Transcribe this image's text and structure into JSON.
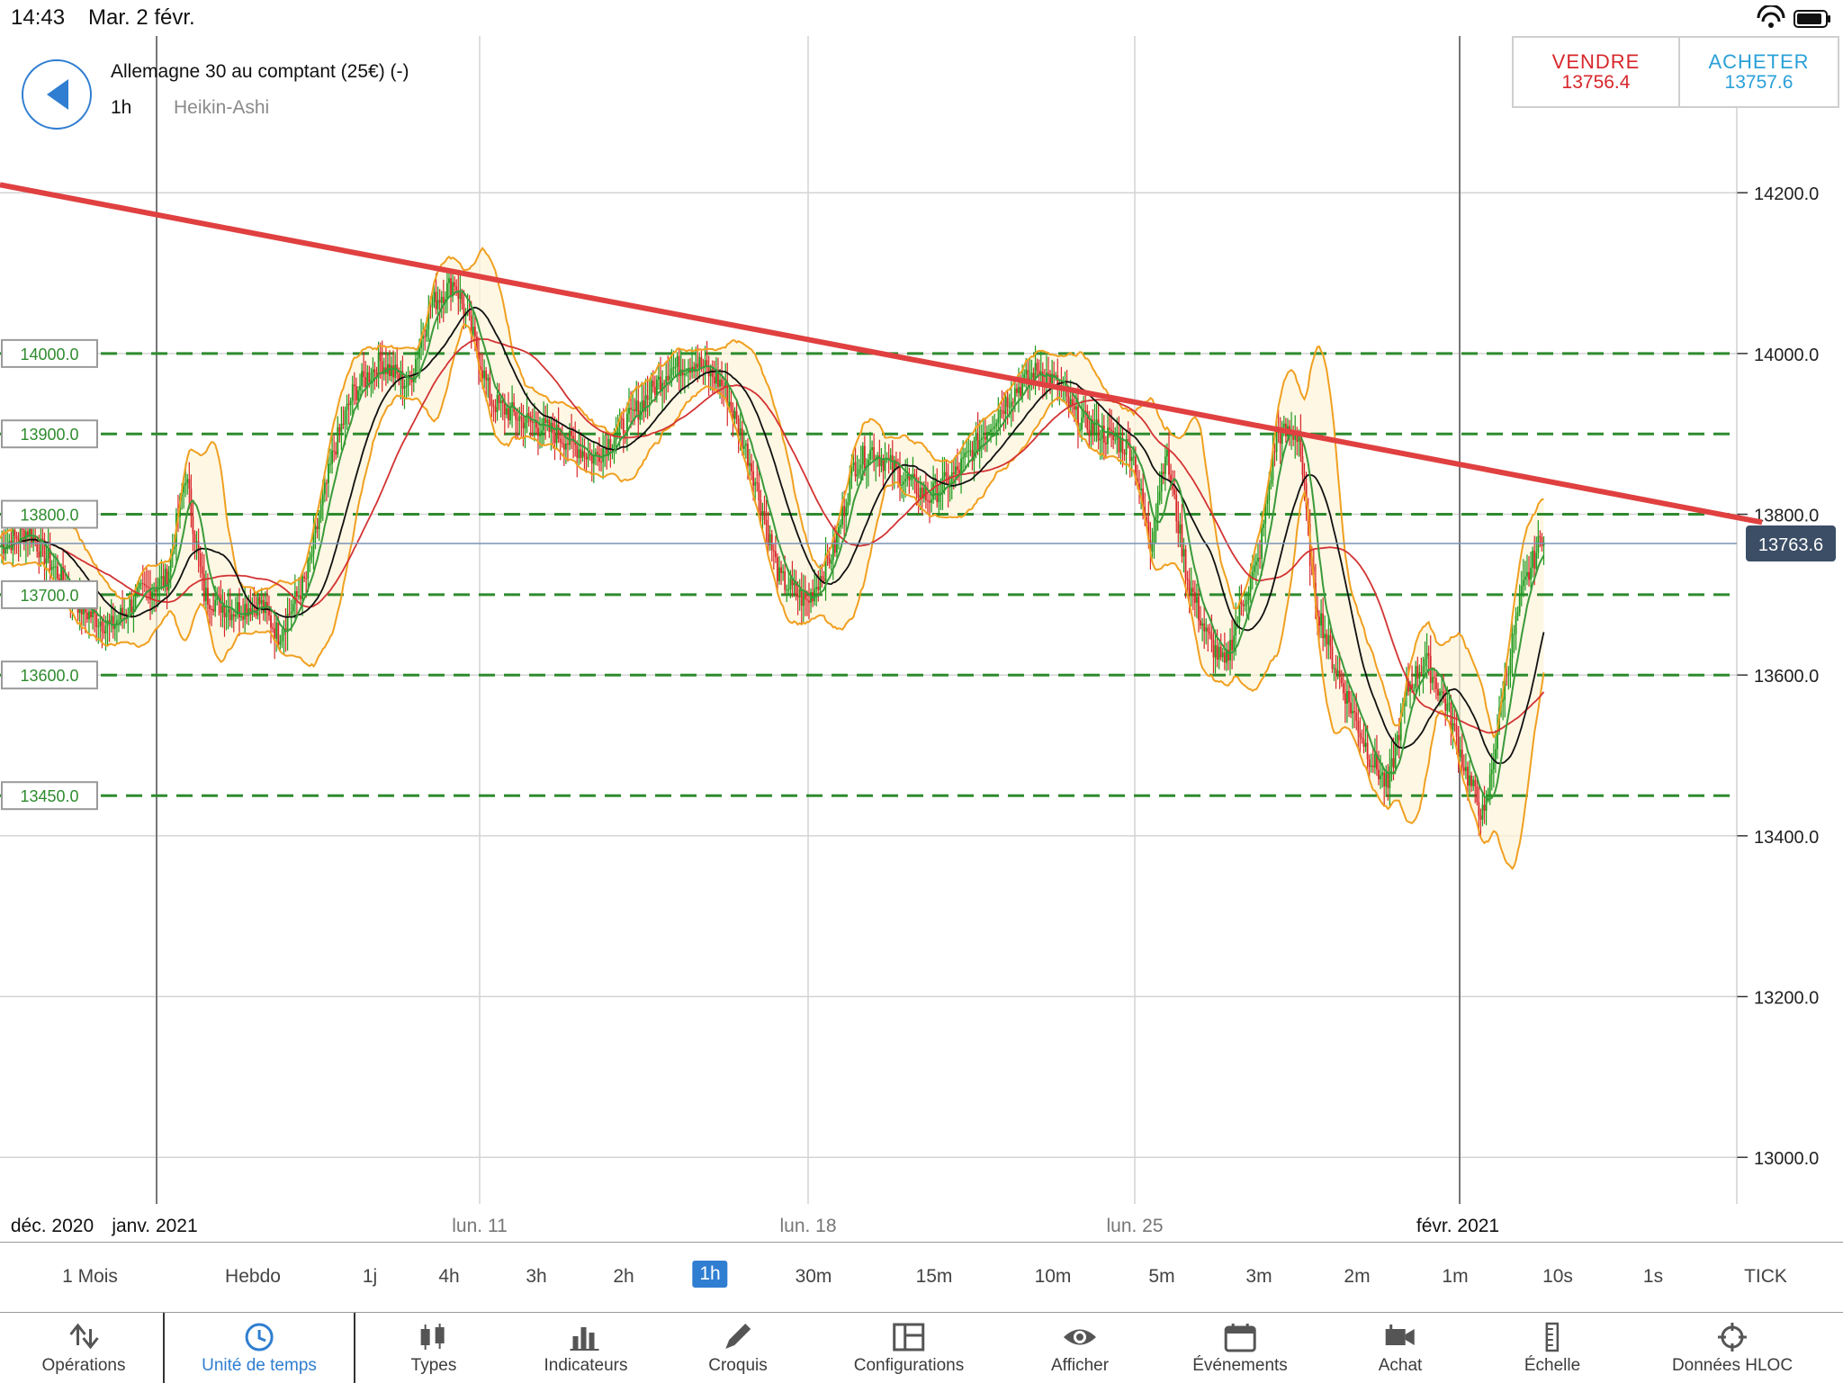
{
  "status_bar": {
    "time": "14:43",
    "date": "Mar. 2 févr."
  },
  "header": {
    "instrument": "Allemagne 30 au comptant (25€) (-)",
    "timeframe": "1h",
    "chart_type": "Heikin-Ashi"
  },
  "trade": {
    "sell_label": "VENDRE",
    "sell_price": "13756.4",
    "buy_label": "ACHETER",
    "buy_price": "13757.6"
  },
  "chart_data": {
    "type": "candlestick",
    "y_ticks": [
      "14200.0",
      "14000.0",
      "13800.0",
      "13600.0",
      "13400.0",
      "13200.0",
      "13000.0"
    ],
    "ylim": [
      12895,
      14395
    ],
    "x_labels": [
      "déc. 2020",
      "janv. 2021",
      "lun. 11",
      "lun. 18",
      "lun. 25",
      "févr. 2021"
    ],
    "level_lines": [
      "14000.0",
      "13900.0",
      "13800.0",
      "13700.0",
      "13600.0",
      "13450.0"
    ],
    "current_price": "13763.6",
    "trendline": [
      14210,
      13790
    ],
    "colors": {
      "up": "#1e9a1e",
      "down": "#d8262a",
      "level": "#2e8b2e",
      "trendline": "#e04040",
      "bollinger": "#f0a020",
      "ma_black": "#111111",
      "ma_red": "#d33333",
      "ma_green": "#3a9a3a"
    },
    "price_track": [
      [
        0,
        13760
      ],
      [
        15,
        13780
      ],
      [
        30,
        13730
      ],
      [
        45,
        13680
      ],
      [
        60,
        13660
      ],
      [
        75,
        13700
      ],
      [
        90,
        13720
      ],
      [
        100,
        13850
      ],
      [
        110,
        13700
      ],
      [
        125,
        13680
      ],
      [
        140,
        13690
      ],
      [
        150,
        13650
      ],
      [
        165,
        13720
      ],
      [
        180,
        13880
      ],
      [
        190,
        13950
      ],
      [
        205,
        13990
      ],
      [
        220,
        13960
      ],
      [
        232,
        14060
      ],
      [
        245,
        14090
      ],
      [
        255,
        14020
      ],
      [
        265,
        13940
      ],
      [
        280,
        13920
      ],
      [
        300,
        13900
      ],
      [
        320,
        13870
      ],
      [
        340,
        13920
      ],
      [
        360,
        13980
      ],
      [
        375,
        13990
      ],
      [
        390,
        13960
      ],
      [
        405,
        13860
      ],
      [
        420,
        13720
      ],
      [
        435,
        13690
      ],
      [
        450,
        13760
      ],
      [
        460,
        13860
      ],
      [
        470,
        13880
      ],
      [
        485,
        13850
      ],
      [
        500,
        13820
      ],
      [
        515,
        13850
      ],
      [
        530,
        13900
      ],
      [
        545,
        13950
      ],
      [
        560,
        13980
      ],
      [
        570,
        13960
      ],
      [
        580,
        13920
      ],
      [
        595,
        13900
      ],
      [
        610,
        13880
      ],
      [
        620,
        13760
      ],
      [
        628,
        13880
      ],
      [
        640,
        13720
      ],
      [
        650,
        13650
      ],
      [
        660,
        13610
      ],
      [
        668,
        13680
      ],
      [
        678,
        13740
      ],
      [
        688,
        13900
      ],
      [
        700,
        13900
      ],
      [
        708,
        13700
      ],
      [
        718,
        13620
      ],
      [
        728,
        13560
      ],
      [
        738,
        13500
      ],
      [
        748,
        13460
      ],
      [
        758,
        13580
      ],
      [
        768,
        13620
      ],
      [
        780,
        13560
      ],
      [
        790,
        13480
      ],
      [
        800,
        13420
      ],
      [
        810,
        13580
      ],
      [
        820,
        13700
      ],
      [
        832,
        13780
      ]
    ]
  },
  "timeframes": [
    "1 Mois",
    "Hebdo",
    "1j",
    "4h",
    "3h",
    "2h",
    "1h",
    "30m",
    "15m",
    "10m",
    "5m",
    "3m",
    "2m",
    "1m",
    "10s",
    "1s",
    "TICK"
  ],
  "active_timeframe": "1h",
  "toolbar": [
    {
      "label": "Opérations",
      "icon": "arrows-icon"
    },
    {
      "label": "Unité de temps",
      "icon": "clock-icon"
    },
    {
      "label": "Types",
      "icon": "candles-icon"
    },
    {
      "label": "Indicateurs",
      "icon": "bars-icon"
    },
    {
      "label": "Croquis",
      "icon": "pencil-icon"
    },
    {
      "label": "Configurations",
      "icon": "layout-icon"
    },
    {
      "label": "Afficher",
      "icon": "eye-icon"
    },
    {
      "label": "Événements",
      "icon": "calendar-icon"
    },
    {
      "label": "Achat",
      "icon": "camera-icon"
    },
    {
      "label": "Échelle",
      "icon": "ruler-icon"
    },
    {
      "label": "Données HLOC",
      "icon": "crosshair-icon"
    }
  ]
}
